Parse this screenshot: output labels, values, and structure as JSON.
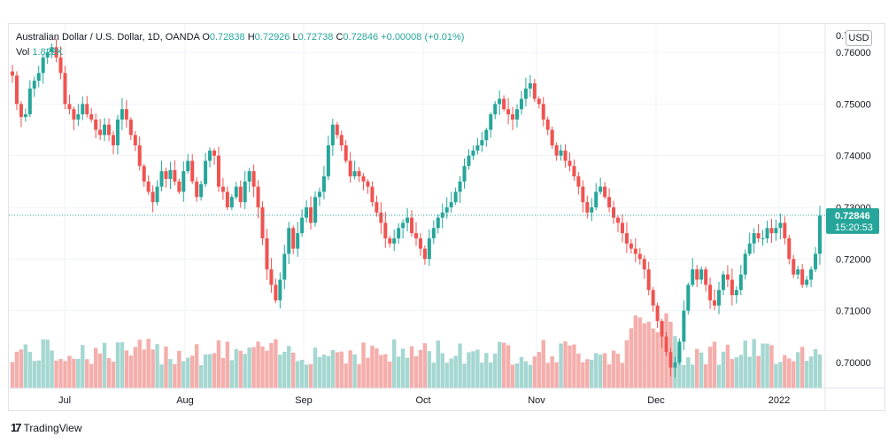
{
  "header": {
    "symbol": "Australian Dollar / U.S. Dollar, 1D, OANDA",
    "o_label": "O",
    "o_value": "0.72838",
    "h_label": "H",
    "h_value": "0.72926",
    "l_label": "L",
    "l_value": "0.72738",
    "c_label": "C",
    "c_value": "0.72846",
    "change": "+0.00008 (+0.01%)",
    "vol_label": "Vol",
    "vol_value": "1.822K"
  },
  "currency_badge": "USD",
  "price_tag": {
    "price": "0.72846",
    "countdown": "15:20:53"
  },
  "footer": {
    "brand": "TradingView"
  },
  "colors": {
    "up": "#26a69a",
    "down": "#ef5350",
    "up_vol": "#a5d7d1",
    "down_vol": "#f4aeab",
    "grid": "#f0f3fa"
  },
  "chart_data": {
    "type": "candlestick",
    "y_axis": {
      "min": 0.695,
      "max": 0.7655,
      "ticks": [
        "0.76000",
        "0.75000",
        "0.74000",
        "0.73000",
        "0.72000",
        "0.71000",
        "0.70000"
      ],
      "top_tick": "0.77000"
    },
    "x_axis": {
      "labels": [
        "Jul",
        "Aug",
        "Sep",
        "Oct",
        "Nov",
        "Dec",
        "2022"
      ]
    },
    "last_close": 0.72846,
    "closes": [
      0.7555,
      0.75,
      0.7475,
      0.748,
      0.753,
      0.7545,
      0.756,
      0.759,
      0.76,
      0.761,
      0.759,
      0.756,
      0.75,
      0.749,
      0.747,
      0.748,
      0.75,
      0.748,
      0.747,
      0.745,
      0.744,
      0.746,
      0.744,
      0.742,
      0.747,
      0.749,
      0.747,
      0.744,
      0.742,
      0.738,
      0.735,
      0.733,
      0.731,
      0.734,
      0.737,
      0.7355,
      0.7372,
      0.735,
      0.733,
      0.737,
      0.739,
      0.735,
      0.732,
      0.7345,
      0.739,
      0.741,
      0.74,
      0.734,
      0.733,
      0.73,
      0.732,
      0.734,
      0.731,
      0.735,
      0.737,
      0.734,
      0.73,
      0.724,
      0.718,
      0.715,
      0.712,
      0.716,
      0.721,
      0.726,
      0.722,
      0.725,
      0.728,
      0.73,
      0.727,
      0.732,
      0.733,
      0.736,
      0.742,
      0.746,
      0.744,
      0.742,
      0.739,
      0.736,
      0.737,
      0.736,
      0.735,
      0.734,
      0.731,
      0.729,
      0.727,
      0.724,
      0.723,
      0.724,
      0.726,
      0.727,
      0.728,
      0.725,
      0.724,
      0.722,
      0.72,
      0.724,
      0.726,
      0.728,
      0.729,
      0.73,
      0.731,
      0.733,
      0.735,
      0.738,
      0.74,
      0.741,
      0.742,
      0.743,
      0.745,
      0.748,
      0.75,
      0.751,
      0.749,
      0.748,
      0.747,
      0.749,
      0.751,
      0.753,
      0.754,
      0.751,
      0.75,
      0.747,
      0.745,
      0.742,
      0.74,
      0.741,
      0.739,
      0.738,
      0.736,
      0.734,
      0.731,
      0.729,
      0.73,
      0.733,
      0.734,
      0.732,
      0.73,
      0.728,
      0.727,
      0.725,
      0.723,
      0.722,
      0.721,
      0.72,
      0.718,
      0.714,
      0.711,
      0.708,
      0.705,
      0.702,
      0.699,
      0.7,
      0.704,
      0.71,
      0.715,
      0.718,
      0.716,
      0.718,
      0.715,
      0.712,
      0.711,
      0.714,
      0.717,
      0.716,
      0.713,
      0.714,
      0.717,
      0.721,
      0.723,
      0.725,
      0.724,
      0.724,
      0.726,
      0.725,
      0.726,
      0.727,
      0.724,
      0.72,
      0.717,
      0.718,
      0.715,
      0.716,
      0.718,
      0.721,
      0.7284
    ]
  }
}
